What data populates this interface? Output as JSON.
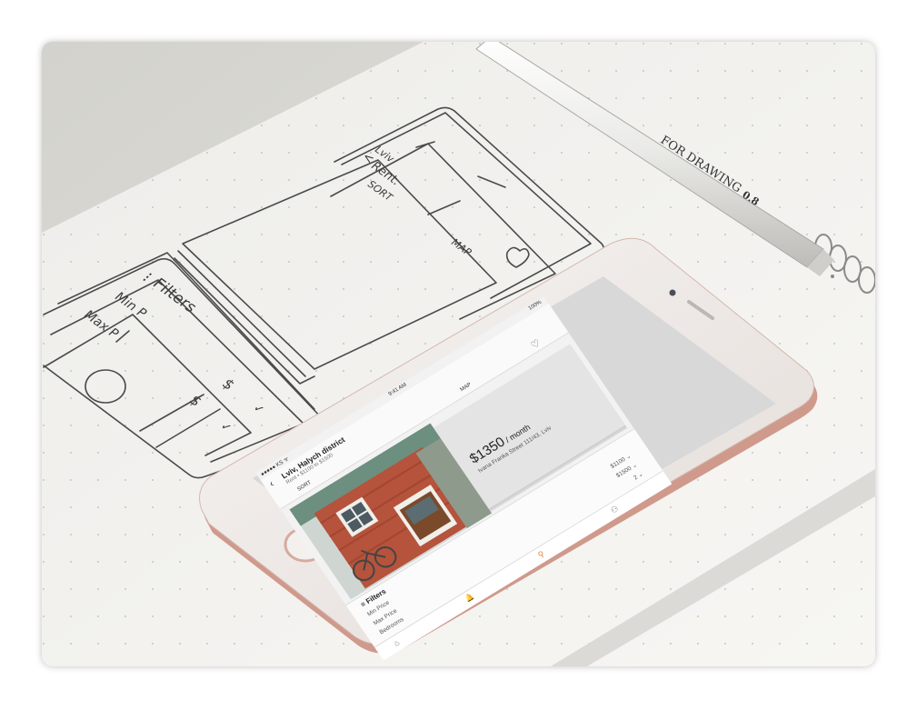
{
  "sketch": {
    "header_city": "Lviv",
    "header_title": "Rent.",
    "back_glyph": "<",
    "sort": "SORT",
    "map": "MAP",
    "filters": "Filters",
    "filter_glyph": "⁝",
    "min_price": "Min P",
    "max_price": "Max P",
    "value_1": "$",
    "value_2": "$",
    "check_1": "✓",
    "check_2": "✓"
  },
  "pen": {
    "brand": "FOR DRAWING",
    "size": "0.8"
  },
  "screen": {
    "status": {
      "carrier": "●●●●● KS ᯤ",
      "time": "9:41 AM",
      "battery": "100%"
    },
    "header": {
      "back": "‹",
      "title": "Lviv, Halych district",
      "subtitle": "Rent • $1100 to $1500",
      "sort": "SORT",
      "map": "MAP",
      "heart": "♡"
    },
    "listing": {
      "price": "$1350",
      "period": " / month",
      "address": "Ivana Franka Street 111/43, Lviv"
    },
    "filters": {
      "title": "Filters",
      "icon": "≡",
      "rows": [
        {
          "label": "Min Price",
          "value": "$1100 ⌄"
        },
        {
          "label": "Max Price",
          "value": "$1500 ⌄"
        },
        {
          "label": "Bedrooms",
          "value": "2 ⌄"
        }
      ]
    },
    "tabs": [
      {
        "name": "home",
        "glyph": "⌂"
      },
      {
        "name": "notifications",
        "glyph": "🔔"
      },
      {
        "name": "search",
        "glyph": "⚲"
      },
      {
        "name": "profile",
        "glyph": "⚇"
      }
    ]
  },
  "colors": {
    "phone_body": "#ece6e2",
    "phone_edge": "#d9a99a",
    "brick": "#b5533c",
    "accent": "#e8823a"
  }
}
